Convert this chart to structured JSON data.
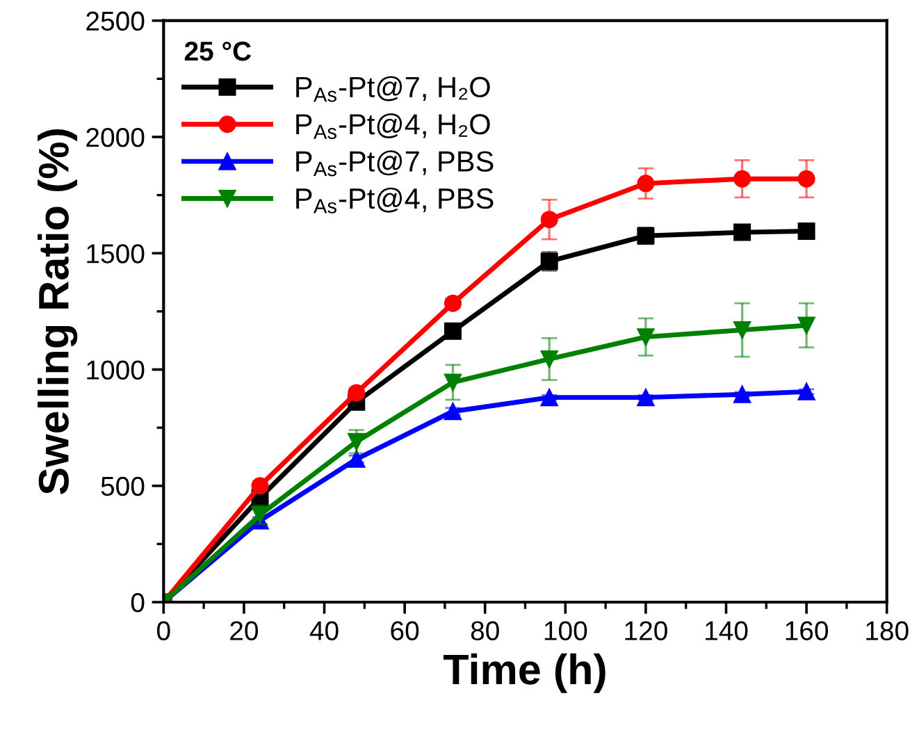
{
  "chart_data": {
    "type": "line",
    "xlabel": "Time (h)",
    "ylabel": "Swelling Ratio (%)",
    "legend_title": "25 °C",
    "x": [
      0,
      24,
      48,
      72,
      96,
      120,
      144,
      160
    ],
    "series": [
      {
        "name": "P$_{As}$-Pt@7, H₂O",
        "color": "#000000",
        "marker": "square",
        "values": [
          0,
          449,
          860,
          1165,
          1465,
          1575,
          1590,
          1595
        ],
        "errors": [
          null,
          30,
          20,
          20,
          40,
          35,
          15,
          15
        ]
      },
      {
        "name": "P$_{As}$-Pt@4, H₂O",
        "color": "#ff0000",
        "marker": "circle",
        "values": [
          0,
          500,
          900,
          1285,
          1645,
          1800,
          1820,
          1820
        ],
        "errors": [
          null,
          20,
          20,
          20,
          85,
          65,
          80,
          80
        ]
      },
      {
        "name": "P$_{As}$-Pt@7, PBS",
        "color": "#0000ff",
        "marker": "triangle",
        "values": [
          0,
          350,
          615,
          820,
          880,
          880,
          893,
          905
        ],
        "errors": [
          null,
          15,
          15,
          15,
          10,
          10,
          10,
          10
        ]
      },
      {
        "name": "P$_{As}$-Pt@4, PBS",
        "color": "#008000",
        "marker": "triangle_down",
        "values": [
          0,
          375,
          690,
          945,
          1045,
          1140,
          1170,
          1190
        ],
        "errors": [
          null,
          40,
          50,
          75,
          90,
          80,
          115,
          95
        ]
      }
    ],
    "xlim": [
      0,
      180
    ],
    "xticks": [
      0,
      20,
      40,
      60,
      80,
      100,
      120,
      140,
      160,
      180
    ],
    "ylim": [
      0,
      2500
    ],
    "yticks": [
      0,
      500,
      1000,
      1500,
      2000,
      2500
    ],
    "legend": "top left",
    "grid": false,
    "line_style": "solid"
  }
}
